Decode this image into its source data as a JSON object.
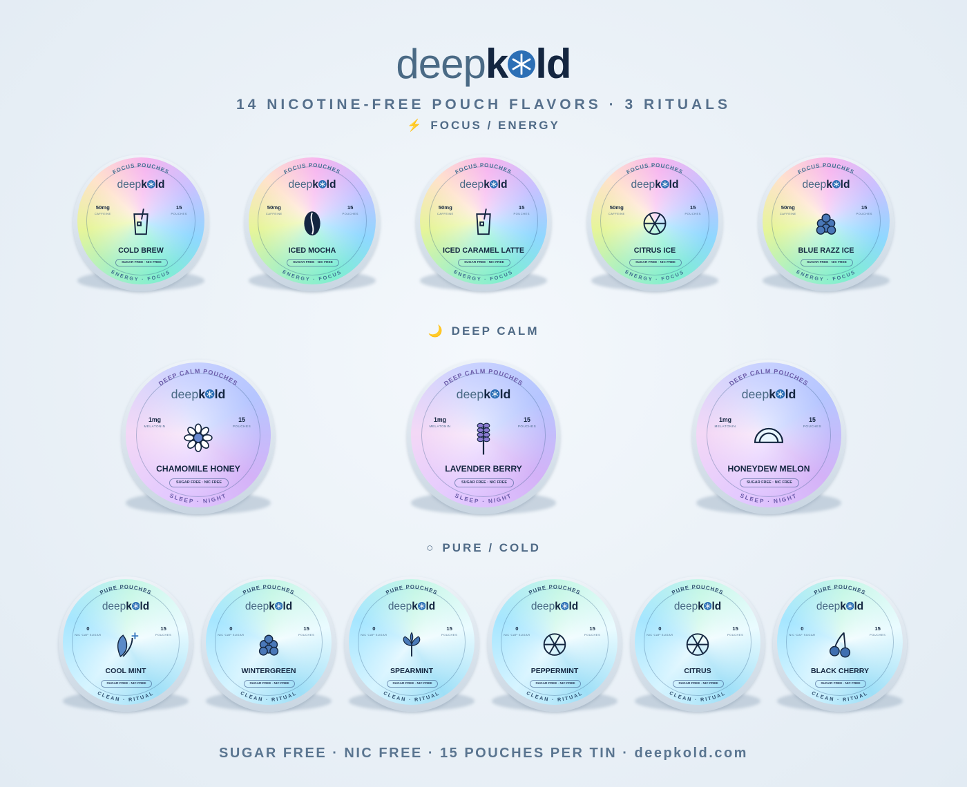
{
  "header": {
    "logo": {
      "light": "deep",
      "bold_start": "k",
      "bold_end": "ld"
    },
    "subtitle": "14 NICOTINE-FREE POUCH FLAVORS · 3 RITUALS"
  },
  "sections": [
    {
      "icon": "⚡",
      "title": "FOCUS / ENERGY",
      "tin_top": "FOCUS POUCHES",
      "tin_bottom": "ENERGY · FOCUS",
      "left_value": "50mg",
      "left_label": "CAFFEINE",
      "right_value": "15",
      "right_label": "POUCHES",
      "badge": "SUGAR FREE · NIC FREE",
      "flavors": [
        "COLD BREW",
        "ICED MOCHA",
        "ICED CARAMEL LATTE",
        "CITRUS ICE",
        "BLUE RAZZ ICE"
      ]
    },
    {
      "icon": "🌙",
      "title": "DEEP CALM",
      "tin_top": "DEEP CALM POUCHES",
      "tin_bottom": "SLEEP · NIGHT",
      "left_value": "1mg",
      "left_label": "MELATONIN",
      "right_value": "15",
      "right_label": "POUCHES",
      "badge": "SUGAR FREE · NIC FREE",
      "flavors": [
        "CHAMOMILE HONEY",
        "LAVENDER BERRY",
        "HONEYDEW MELON"
      ]
    },
    {
      "icon": "○",
      "title": "PURE / COLD",
      "tin_top": "PURE POUCHES",
      "tin_bottom": "CLEAN · RITUAL",
      "left_value": "0",
      "left_label": "NIC·CAF·SUGAR",
      "right_value": "15",
      "right_label": "POUCHES",
      "badge": "SUGAR FREE · NIC FREE",
      "flavors": [
        "COOL MINT",
        "WINTERGREEN",
        "SPEARMINT",
        "PEPPERMINT",
        "CITRUS",
        "BLACK CHERRY"
      ]
    }
  ],
  "footer": "SUGAR FREE · NIC FREE · 15 POUCHES PER TIN · deepkold.com"
}
